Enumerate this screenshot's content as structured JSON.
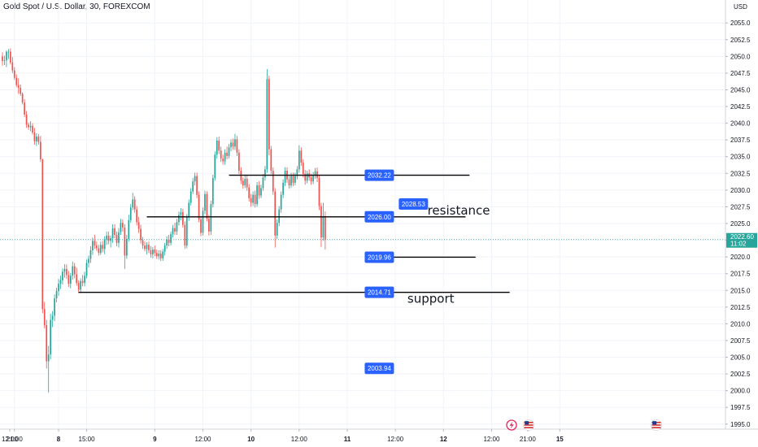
{
  "header": {
    "symbol_title": "Gold Spot / U.S. Dollar, 30, FOREXCOM",
    "currency": "USD"
  },
  "colors": {
    "up": "#26a69a",
    "down": "#ef5350",
    "level_box": "#2962ff",
    "price_box": "#26a69a",
    "line": "#000000"
  },
  "icons": [
    "lightning-icon",
    "us-flag-icon",
    "us-flag-icon"
  ],
  "chart_data": {
    "type": "candlestick",
    "ylim": [
      1994.0,
      2056.0
    ],
    "y_ticks": [
      1995.0,
      1997.5,
      2000.0,
      2002.5,
      2005.0,
      2007.5,
      2010.0,
      2012.5,
      2015.0,
      2017.5,
      2020.0,
      2022.5,
      2025.0,
      2027.5,
      2030.0,
      2032.5,
      2035.0,
      2037.5,
      2040.0,
      2042.5,
      2045.0,
      2047.5,
      2050.0,
      2052.5,
      2055.0
    ],
    "x_ticks": [
      {
        "label": "12:00",
        "bar": -21,
        "bold": false
      },
      {
        "label": "21:00",
        "bar": 6,
        "bold": false
      },
      {
        "label": "8",
        "bar": 28,
        "bold": true
      },
      {
        "label": "15:00",
        "bar": 42,
        "bold": false
      },
      {
        "label": "9",
        "bar": 76,
        "bold": true
      },
      {
        "label": "12:00",
        "bar": 100,
        "bold": false
      },
      {
        "label": "10",
        "bar": 124,
        "bold": true
      },
      {
        "label": "12:00",
        "bar": 148,
        "bold": false
      },
      {
        "label": "11",
        "bar": 172,
        "bold": true
      },
      {
        "label": "12:00",
        "bar": 196,
        "bold": false
      },
      {
        "label": "12",
        "bar": 220,
        "bold": true
      },
      {
        "label": "12:00",
        "bar": 244,
        "bold": false
      },
      {
        "label": "21:00",
        "bar": 262,
        "bold": false
      },
      {
        "label": "15",
        "bar": 278,
        "bold": true
      }
    ],
    "current_price": {
      "value": 2022.6,
      "label": "2022.60",
      "countdown": "11:02"
    },
    "levels": [
      {
        "value": 2032.22,
        "label": "2032.22",
        "from_bar": 113,
        "to_bar": 233
      },
      {
        "value": 2026.0,
        "label": "2026.00",
        "from_bar": 72,
        "to_bar": 231
      },
      {
        "value": 2019.96,
        "label": "2019.96",
        "from_bar": 192,
        "to_bar": 236
      },
      {
        "value": 2014.71,
        "label": "2014.71",
        "from_bar": 38,
        "to_bar": 253
      }
    ],
    "markers": [
      {
        "value": 2028.53,
        "label": "2028.53",
        "bar": 205
      },
      {
        "value": 2003.94,
        "label": "2003.94",
        "bar": 188
      }
    ],
    "annotations": [
      {
        "text": "resistance",
        "value": 2026.0,
        "bar": 212
      },
      {
        "text": "support",
        "value": 2012.8,
        "bar": 202
      }
    ],
    "ohlc": [
      [
        2050.0,
        2050.6,
        2048.6,
        2049.3
      ],
      [
        2049.3,
        2050.1,
        2048.7,
        2049.4
      ],
      [
        2049.4,
        2050.9,
        2048.4,
        2050.7
      ],
      [
        2050.7,
        2051.1,
        2049.6,
        2050.7
      ],
      [
        2050.7,
        2051.2,
        2048.8,
        2049.1
      ],
      [
        2049.1,
        2049.9,
        2047.5,
        2047.9
      ],
      [
        2047.9,
        2048.4,
        2046.5,
        2046.8
      ],
      [
        2046.8,
        2047.3,
        2045.4,
        2045.7
      ],
      [
        2045.7,
        2046.7,
        2044.4,
        2045.3
      ],
      [
        2045.3,
        2045.8,
        2044.1,
        2044.4
      ],
      [
        2044.4,
        2044.6,
        2042.8,
        2043.1
      ],
      [
        2043.1,
        2043.6,
        2040.9,
        2041.3
      ],
      [
        2041.3,
        2041.8,
        2039.3,
        2039.8
      ],
      [
        2039.8,
        2040.1,
        2039.0,
        2039.4
      ],
      [
        2039.4,
        2040.3,
        2038.8,
        2039.6
      ],
      [
        2039.6,
        2040.0,
        2038.3,
        2038.6
      ],
      [
        2038.6,
        2039.3,
        2036.8,
        2037.3
      ],
      [
        2037.3,
        2038.5,
        2036.6,
        2038.0
      ],
      [
        2038.0,
        2038.4,
        2036.8,
        2037.2
      ],
      [
        2037.2,
        2038.1,
        2034.2,
        2034.6
      ],
      [
        2034.6,
        2034.7,
        2011.6,
        2012.2
      ],
      [
        2012.2,
        2013.3,
        2009.3,
        2009.8
      ],
      [
        2009.8,
        2010.6,
        2003.3,
        2004.4
      ],
      [
        2004.4,
        2006.7,
        1999.7,
        2005.4
      ],
      [
        2005.4,
        2011.5,
        2004.7,
        2010.6
      ],
      [
        2010.6,
        2011.9,
        2009.5,
        2011.2
      ],
      [
        2011.2,
        2014.4,
        2010.4,
        2013.8
      ],
      [
        2013.8,
        2015.4,
        2013.2,
        2014.9
      ],
      [
        2014.9,
        2016.7,
        2014.2,
        2016.0
      ],
      [
        2016.0,
        2017.2,
        2015.2,
        2016.5
      ],
      [
        2016.5,
        2018.3,
        2015.9,
        2017.8
      ],
      [
        2017.8,
        2018.9,
        2016.9,
        2018.2
      ],
      [
        2018.2,
        2018.9,
        2016.7,
        2017.3
      ],
      [
        2017.3,
        2017.9,
        2015.5,
        2016.0
      ],
      [
        2016.0,
        2017.6,
        2015.3,
        2017.2
      ],
      [
        2017.2,
        2019.3,
        2016.6,
        2018.6
      ],
      [
        2018.6,
        2019.1,
        2016.8,
        2017.4
      ],
      [
        2017.4,
        2018.4,
        2015.7,
        2016.1
      ],
      [
        2016.1,
        2016.5,
        2014.6,
        2015.1
      ],
      [
        2015.1,
        2016.8,
        2014.6,
        2016.4
      ],
      [
        2016.4,
        2017.3,
        2015.6,
        2016.1
      ],
      [
        2016.1,
        2017.8,
        2015.6,
        2017.2
      ],
      [
        2017.2,
        2019.6,
        2016.8,
        2019.1
      ],
      [
        2019.1,
        2020.2,
        2018.4,
        2019.7
      ],
      [
        2019.7,
        2021.6,
        2019.1,
        2021.0
      ],
      [
        2021.0,
        2022.9,
        2020.3,
        2022.4
      ],
      [
        2022.4,
        2023.3,
        2021.2,
        2021.7
      ],
      [
        2021.7,
        2022.3,
        2020.9,
        2021.3
      ],
      [
        2021.3,
        2021.8,
        2020.2,
        2020.6
      ],
      [
        2020.6,
        2022.3,
        2020.3,
        2021.8
      ],
      [
        2021.8,
        2022.4,
        2020.7,
        2021.2
      ],
      [
        2021.2,
        2023.1,
        2020.4,
        2022.6
      ],
      [
        2022.6,
        2023.8,
        2021.8,
        2023.2
      ],
      [
        2023.2,
        2023.8,
        2021.9,
        2022.4
      ],
      [
        2022.4,
        2023.2,
        2021.4,
        2022.8
      ],
      [
        2022.8,
        2024.9,
        2022.1,
        2024.3
      ],
      [
        2024.3,
        2024.9,
        2022.8,
        2023.3
      ],
      [
        2023.3,
        2023.8,
        2021.6,
        2022.1
      ],
      [
        2022.1,
        2024.3,
        2021.4,
        2023.7
      ],
      [
        2023.7,
        2025.7,
        2023.3,
        2025.1
      ],
      [
        2025.1,
        2025.6,
        2023.8,
        2024.4
      ],
      [
        2024.4,
        2024.9,
        2018.2,
        2020.2
      ],
      [
        2020.2,
        2023.3,
        2019.7,
        2022.7
      ],
      [
        2022.7,
        2026.3,
        2022.3,
        2025.5
      ],
      [
        2025.5,
        2027.9,
        2025.1,
        2027.4
      ],
      [
        2027.4,
        2029.6,
        2027.0,
        2028.6
      ],
      [
        2028.6,
        2029.1,
        2026.6,
        2027.1
      ],
      [
        2027.1,
        2027.6,
        2024.7,
        2025.2
      ],
      [
        2025.2,
        2026.0,
        2023.6,
        2024.2
      ],
      [
        2024.2,
        2024.8,
        2022.0,
        2022.5
      ],
      [
        2022.5,
        2023.0,
        2021.2,
        2021.7
      ],
      [
        2021.7,
        2022.3,
        2020.8,
        2021.2
      ],
      [
        2021.2,
        2022.2,
        2020.4,
        2021.8
      ],
      [
        2021.8,
        2022.3,
        2020.6,
        2021.0
      ],
      [
        2021.0,
        2021.6,
        2019.9,
        2020.4
      ],
      [
        2020.4,
        2021.5,
        2019.8,
        2021.1
      ],
      [
        2021.1,
        2021.7,
        2020.1,
        2020.6
      ],
      [
        2020.6,
        2021.1,
        2019.7,
        2020.1
      ],
      [
        2020.1,
        2021.0,
        2019.6,
        2020.5
      ],
      [
        2020.5,
        2021.0,
        2019.4,
        2019.8
      ],
      [
        2019.8,
        2021.2,
        2019.4,
        2020.8
      ],
      [
        2020.8,
        2022.1,
        2020.2,
        2021.7
      ],
      [
        2021.7,
        2023.1,
        2021.2,
        2022.6
      ],
      [
        2022.6,
        2023.3,
        2021.6,
        2022.1
      ],
      [
        2022.1,
        2023.8,
        2021.7,
        2023.4
      ],
      [
        2023.4,
        2024.8,
        2022.9,
        2024.3
      ],
      [
        2024.3,
        2025.1,
        2023.3,
        2023.8
      ],
      [
        2023.8,
        2025.7,
        2023.3,
        2025.2
      ],
      [
        2025.2,
        2026.8,
        2024.7,
        2026.3
      ],
      [
        2026.3,
        2027.3,
        2025.5,
        2026.7
      ],
      [
        2026.7,
        2027.2,
        2024.4,
        2024.8
      ],
      [
        2024.8,
        2025.3,
        2021.2,
        2021.7
      ],
      [
        2021.7,
        2026.4,
        2021.3,
        2025.9
      ],
      [
        2025.9,
        2028.6,
        2025.4,
        2028.1
      ],
      [
        2028.1,
        2030.3,
        2027.7,
        2029.8
      ],
      [
        2029.8,
        2031.8,
        2029.4,
        2031.3
      ],
      [
        2031.3,
        2032.6,
        2030.7,
        2032.1
      ],
      [
        2032.1,
        2032.6,
        2028.8,
        2029.3
      ],
      [
        2029.3,
        2029.8,
        2025.2,
        2025.6
      ],
      [
        2025.6,
        2026.1,
        2023.1,
        2023.6
      ],
      [
        2023.6,
        2027.4,
        2023.2,
        2026.9
      ],
      [
        2026.9,
        2029.9,
        2026.4,
        2029.4
      ],
      [
        2029.4,
        2029.8,
        2025.3,
        2025.7
      ],
      [
        2025.7,
        2026.3,
        2023.2,
        2023.8
      ],
      [
        2023.8,
        2028.4,
        2023.3,
        2027.9
      ],
      [
        2027.9,
        2032.3,
        2027.4,
        2031.8
      ],
      [
        2031.8,
        2035.8,
        2031.4,
        2035.3
      ],
      [
        2035.3,
        2037.9,
        2034.7,
        2037.4
      ],
      [
        2037.4,
        2038.0,
        2035.4,
        2035.9
      ],
      [
        2035.9,
        2036.5,
        2034.2,
        2034.7
      ],
      [
        2034.7,
        2035.3,
        2033.8,
        2034.3
      ],
      [
        2034.3,
        2036.1,
        2033.8,
        2035.6
      ],
      [
        2035.6,
        2036.5,
        2034.6,
        2035.1
      ],
      [
        2035.1,
        2036.9,
        2034.7,
        2036.4
      ],
      [
        2036.4,
        2037.6,
        2035.8,
        2037.1
      ],
      [
        2037.1,
        2037.7,
        2036.0,
        2036.5
      ],
      [
        2036.5,
        2038.4,
        2036.0,
        2037.6
      ],
      [
        2037.6,
        2038.1,
        2035.1,
        2035.6
      ],
      [
        2035.6,
        2036.1,
        2032.4,
        2032.9
      ],
      [
        2032.9,
        2033.4,
        2030.9,
        2031.4
      ],
      [
        2031.4,
        2031.9,
        2030.2,
        2030.7
      ],
      [
        2030.7,
        2032.2,
        2030.3,
        2031.7
      ],
      [
        2031.7,
        2032.3,
        2029.9,
        2030.4
      ],
      [
        2030.4,
        2030.9,
        2028.3,
        2028.8
      ],
      [
        2028.8,
        2029.4,
        2027.5,
        2028.1
      ],
      [
        2028.1,
        2029.8,
        2027.6,
        2029.3
      ],
      [
        2029.3,
        2029.9,
        2027.4,
        2027.9
      ],
      [
        2027.9,
        2031.2,
        2027.5,
        2030.7
      ],
      [
        2030.7,
        2031.3,
        2028.7,
        2029.2
      ],
      [
        2029.2,
        2030.8,
        2028.8,
        2030.3
      ],
      [
        2030.3,
        2032.4,
        2029.9,
        2031.9
      ],
      [
        2031.9,
        2033.6,
        2031.4,
        2033.1
      ],
      [
        2033.1,
        2048.1,
        2032.6,
        2046.6
      ],
      [
        2046.6,
        2047.1,
        2035.2,
        2036.1
      ],
      [
        2036.1,
        2036.6,
        2032.4,
        2032.9
      ],
      [
        2032.9,
        2033.4,
        2029.3,
        2029.8
      ],
      [
        2029.8,
        2030.3,
        2021.4,
        2023.2
      ],
      [
        2023.2,
        2025.6,
        2022.7,
        2025.1
      ],
      [
        2025.1,
        2027.6,
        2024.6,
        2027.1
      ],
      [
        2027.1,
        2029.8,
        2026.6,
        2029.3
      ],
      [
        2029.3,
        2031.6,
        2028.8,
        2031.1
      ],
      [
        2031.1,
        2033.4,
        2030.6,
        2032.9
      ],
      [
        2032.9,
        2033.4,
        2031.1,
        2031.6
      ],
      [
        2031.6,
        2032.1,
        2030.2,
        2030.7
      ],
      [
        2030.7,
        2032.6,
        2030.3,
        2032.1
      ],
      [
        2032.1,
        2032.6,
        2030.6,
        2031.1
      ],
      [
        2031.1,
        2032.6,
        2030.7,
        2032.1
      ],
      [
        2032.1,
        2033.6,
        2031.6,
        2033.1
      ],
      [
        2033.1,
        2036.7,
        2032.6,
        2035.9
      ],
      [
        2035.9,
        2036.4,
        2033.6,
        2034.1
      ],
      [
        2034.1,
        2034.6,
        2031.9,
        2032.4
      ],
      [
        2032.4,
        2033.0,
        2030.8,
        2031.4
      ],
      [
        2031.4,
        2032.9,
        2031.0,
        2032.5
      ],
      [
        2032.5,
        2033.1,
        2031.4,
        2031.9
      ],
      [
        2031.9,
        2032.4,
        2030.8,
        2031.3
      ],
      [
        2031.3,
        2032.7,
        2030.9,
        2032.2
      ],
      [
        2032.2,
        2033.3,
        2031.7,
        2032.8
      ],
      [
        2032.8,
        2033.4,
        2031.2,
        2031.8
      ],
      [
        2031.8,
        2032.3,
        2027.0,
        2027.6
      ],
      [
        2027.6,
        2028.1,
        2021.5,
        2022.9
      ],
      [
        2022.9,
        2028.1,
        2022.4,
        2026.1
      ],
      [
        2026.1,
        2026.8,
        2021.1,
        2022.6
      ]
    ]
  }
}
